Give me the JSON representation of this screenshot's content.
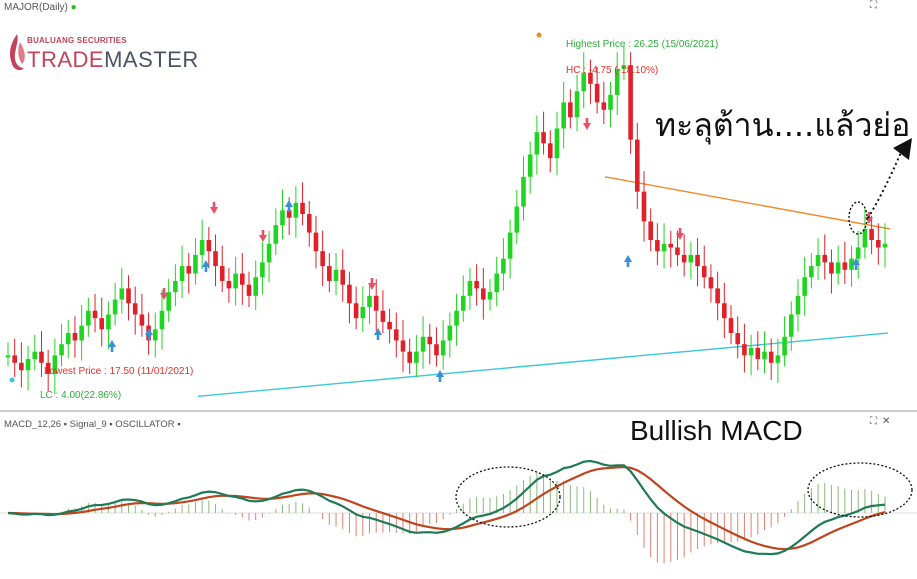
{
  "header": {
    "symbol": "MAJOR(Daily)",
    "indicator": "MACD_12,26 ▪ Signal_9 ▪ OSCILLATOR ▪"
  },
  "brand": {
    "top": "BUALUANG SECURITIES",
    "main_a": "TRADE",
    "main_b": "MASTER"
  },
  "annotations": {
    "highest": "Highest Price : 26.25 (15/06/2021)",
    "hc": "HC : -4.75 (-18.10%)",
    "lowest": "Lowest Price : 17.50 (11/01/2021)",
    "lc": "LC : 4.00(22.86%)",
    "breakout_note": "ทะลุต้าน....แล้วย่อ",
    "macd_note": "Bullish MACD"
  },
  "controls": {
    "expand": "⛶",
    "close": "✕"
  },
  "colors": {
    "up": "#22d422",
    "down": "#e0202a",
    "resistance": "#f08a2a",
    "support": "#3cc8d8",
    "macd": "#1f7a55",
    "signal": "#c0441e",
    "hist_pos": "#8ab77a",
    "hist_neg": "#e08070",
    "arrow_up": "#3a8fd8",
    "arrow_down": "#e8506a"
  },
  "chart_data": {
    "type": "candlestick",
    "title": "MAJOR(Daily)",
    "ylim": [
      17,
      27
    ],
    "closes": [
      18.2,
      18.0,
      17.8,
      18.1,
      18.3,
      18.0,
      17.7,
      18.2,
      18.5,
      18.8,
      18.6,
      19.0,
      19.4,
      19.2,
      18.9,
      19.3,
      19.7,
      20.0,
      19.6,
      19.3,
      19.0,
      18.6,
      18.9,
      19.4,
      19.9,
      20.2,
      20.6,
      20.4,
      20.9,
      21.3,
      21.0,
      20.6,
      20.2,
      20.0,
      20.4,
      20.1,
      19.8,
      20.3,
      20.7,
      21.2,
      21.7,
      22.1,
      21.9,
      22.3,
      22.0,
      21.5,
      21.0,
      20.6,
      20.2,
      20.5,
      20.1,
      19.6,
      19.2,
      19.5,
      19.8,
      19.4,
      19.1,
      18.9,
      18.6,
      18.3,
      18.0,
      18.3,
      18.7,
      18.5,
      18.2,
      18.6,
      19.0,
      19.4,
      19.8,
      20.2,
      20.0,
      19.7,
      19.9,
      20.4,
      20.8,
      21.5,
      22.2,
      23.0,
      23.6,
      24.2,
      23.9,
      23.5,
      24.3,
      25.0,
      24.6,
      25.3,
      25.8,
      25.5,
      25.0,
      24.8,
      25.2,
      25.9,
      26.0,
      24.0,
      22.6,
      21.8,
      21.3,
      21.0,
      21.2,
      21.1,
      20.9,
      20.7,
      20.9,
      20.6,
      20.3,
      20.0,
      19.6,
      19.2,
      18.8,
      18.5,
      18.2,
      18.4,
      18.1,
      18.3,
      18.0,
      18.2,
      18.7,
      19.3,
      19.8,
      20.3,
      20.6,
      20.9,
      20.7,
      20.4,
      20.7,
      20.5,
      20.8,
      21.1,
      21.6,
      21.3,
      21.1,
      21.2
    ],
    "resistance_line": {
      "start": 23.0,
      "end": 21.6
    },
    "support_line": {
      "start": 17.1,
      "end": 18.8
    },
    "highest_price": 26.25,
    "lowest_price": 17.5
  }
}
